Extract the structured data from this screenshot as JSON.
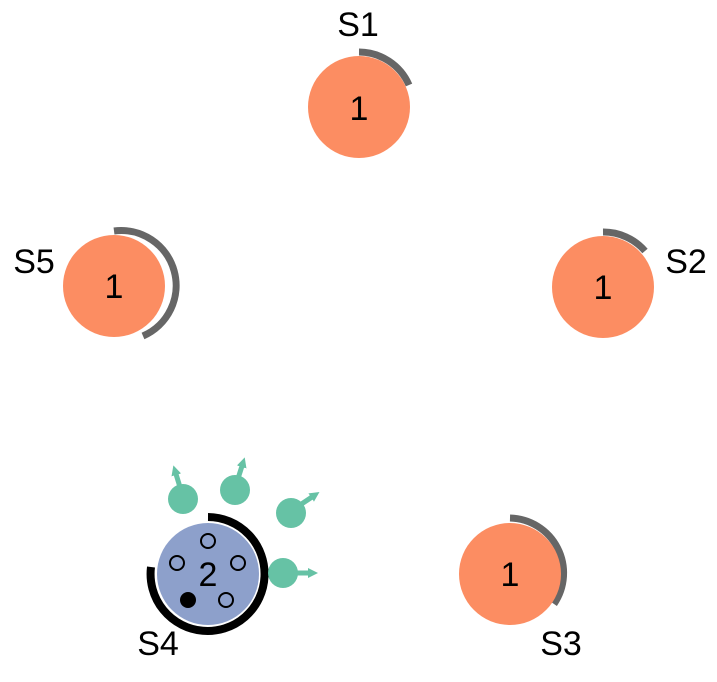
{
  "colors": {
    "node_fill": "#FC8D62",
    "central_fill": "#8DA0CB",
    "agent_fill": "#66C2A5",
    "arc_gray": "#666666",
    "arc_black": "#000000",
    "text": "#000000"
  },
  "nodes": [
    {
      "id": "S1",
      "label": "S1",
      "value": "1",
      "type": "regular"
    },
    {
      "id": "S2",
      "label": "S2",
      "value": "1",
      "type": "regular"
    },
    {
      "id": "S3",
      "label": "S3",
      "value": "1",
      "type": "regular"
    },
    {
      "id": "S4",
      "label": "S4",
      "value": "2",
      "type": "central"
    },
    {
      "id": "S5",
      "label": "S5",
      "value": "1",
      "type": "regular"
    }
  ],
  "central_node": {
    "id": "S4",
    "slots_empty": 4,
    "slots_filled": 1
  },
  "agents_count": 4
}
